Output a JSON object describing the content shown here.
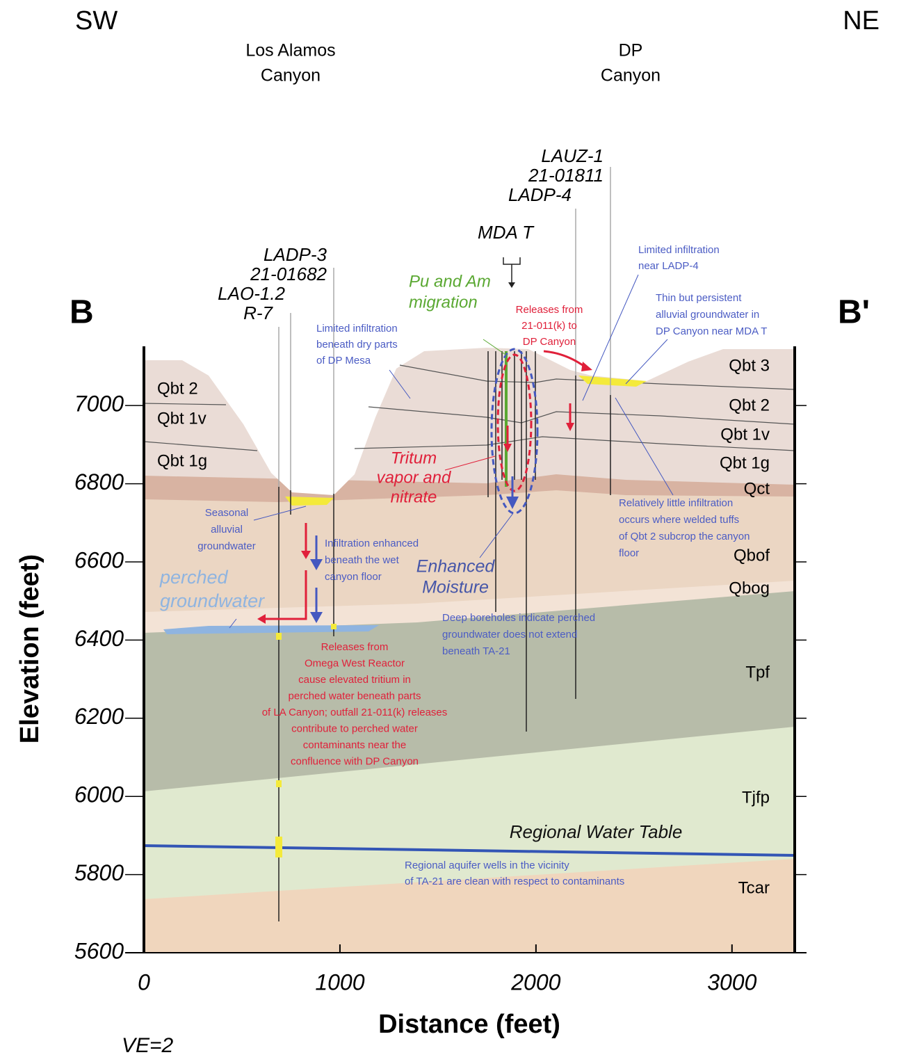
{
  "orientation": {
    "left": "SW",
    "right": "NE"
  },
  "section": {
    "start": "B",
    "end": "B'"
  },
  "canyons": [
    {
      "lines": [
        "Los Alamos",
        "Canyon"
      ]
    },
    {
      "lines": [
        "DP",
        "Canyon"
      ]
    }
  ],
  "boreholes": [
    {
      "lines": [
        "LADP-3",
        "21-01682",
        "LAO-1.2",
        "R-7"
      ]
    },
    {
      "lines": [
        "LAUZ-1",
        "21-01811",
        "LADP-4"
      ]
    },
    {
      "lines": [
        "MDA T"
      ]
    }
  ],
  "left_units": [
    "Qbt 2",
    "Qbt 1v",
    "Qbt 1g"
  ],
  "right_units": [
    "Qbt 3",
    "Qbt 2",
    "Qbt 1v",
    "Qbt 1g",
    "Qct",
    "Qbof",
    "Qbog",
    "Tpf",
    "Tjfp",
    "Tcar"
  ],
  "annotations": [
    {
      "lines": [
        "Pu and Am",
        "migration"
      ],
      "color": "#5aa832"
    },
    {
      "lines": [
        "Tritum",
        "vapor and",
        "nitrate"
      ],
      "color": "#e0203a"
    },
    {
      "lines": [
        "Enhanced",
        "Moisture"
      ],
      "color": "#4656a8"
    },
    {
      "lines": [
        "perched",
        "groundwater"
      ],
      "color": "#8fb4e0"
    },
    {
      "lines": [
        "Regional Water Table"
      ],
      "color": "#111111"
    },
    {
      "lines": [
        "Limited infiltration",
        "beneath dry parts",
        "of DP Mesa"
      ],
      "color": "#4b5cc4"
    },
    {
      "lines": [
        "Releases from",
        "21-011(k) to",
        "DP Canyon"
      ],
      "color": "#e0203a"
    },
    {
      "lines": [
        "Limited infiltration",
        "near LADP-4"
      ],
      "color": "#4b5cc4"
    },
    {
      "lines": [
        "Thin but persistent",
        "alluvial groundwater in",
        "DP Canyon near MDA T"
      ],
      "color": "#4b5cc4"
    },
    {
      "lines": [
        "Seasonal",
        "alluvial",
        "groundwater"
      ],
      "color": "#4b5cc4"
    },
    {
      "lines": [
        "Infiltration enhanced",
        "beneath the wet",
        "canyon floor"
      ],
      "color": "#4b5cc4"
    },
    {
      "lines": [
        "Deep boreholes indicate perched",
        "groundwater does not extend",
        "beneath TA-21"
      ],
      "color": "#4b5cc4"
    },
    {
      "lines": [
        "Relatively little infiltration",
        "occurs where welded tuffs",
        "of Qbt 2 subcrop the canyon",
        "floor"
      ],
      "color": "#4b5cc4"
    },
    {
      "lines": [
        "Releases from",
        "Omega West Reactor",
        "cause elevated tritium in",
        "perched water beneath parts",
        "of LA Canyon; outfall 21-011(k) releases",
        "contribute to perched water",
        "contaminants near the",
        "confluence with DP Canyon"
      ],
      "color": "#e0203a"
    },
    {
      "lines": [
        "Regional aquifer wells in the vicinity",
        "of TA-21 are clean with respect to contaminants"
      ],
      "color": "#4b5cc4"
    }
  ],
  "axes": {
    "x_label": "Distance (feet)",
    "y_label": "Elevation (feet)",
    "xlim": [
      0,
      3320
    ],
    "ylim": [
      5600,
      7148
    ],
    "xticks": [
      0,
      1000,
      2000,
      3000
    ],
    "yticks": [
      5600,
      5800,
      6000,
      6200,
      6400,
      6600,
      6800,
      7000
    ]
  },
  "note": "VE=2"
}
